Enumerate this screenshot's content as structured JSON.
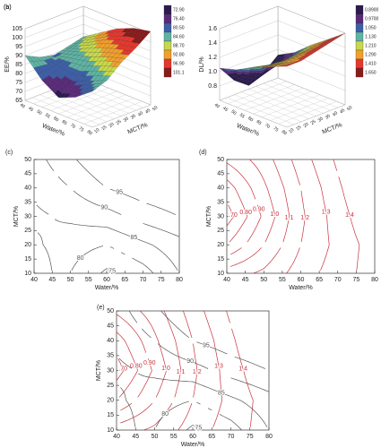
{
  "chart_data": [
    {
      "type": "surface",
      "panel": "(a)",
      "zlabel": "EE/%",
      "xlabel": "Water/%",
      "ylabel": "MCT/%",
      "x": [
        40,
        50,
        60,
        70,
        80
      ],
      "y": [
        10,
        20,
        30,
        40,
        50
      ],
      "z": [
        [
          90,
          80,
          74,
          78,
          85
        ],
        [
          86,
          82,
          80,
          84,
          88
        ],
        [
          84,
          86,
          88,
          92,
          95
        ],
        [
          86,
          90,
          95,
          98,
          100
        ],
        [
          88,
          94,
          100,
          104,
          106
        ]
      ],
      "xlim": [
        40,
        80
      ],
      "ylim": [
        10,
        50
      ],
      "zlim": [
        65,
        105
      ],
      "xticks": [
        40,
        45,
        50,
        55,
        60,
        65,
        70,
        75,
        80
      ],
      "yticks": [
        10,
        15,
        20,
        25,
        30,
        35,
        40,
        45,
        50
      ],
      "zticks": [
        65,
        70,
        75,
        80,
        85,
        90,
        95,
        100,
        105
      ],
      "colorbar": [
        {
          "value": 72.9,
          "label": "72.90"
        },
        {
          "value": 76.4,
          "label": "76.40"
        },
        {
          "value": 80.5,
          "label": "80.50"
        },
        {
          "value": 84.6,
          "label": "84.60"
        },
        {
          "value": 88.7,
          "label": "88.70"
        },
        {
          "value": 92.8,
          "label": "92.80"
        },
        {
          "value": 96.9,
          "label": "96.90"
        },
        101.1
      ],
      "colors": [
        "#2b1b4f",
        "#5a2a7a",
        "#3d5fa8",
        "#5fb3a3",
        "#c7d94a",
        "#f2a02c",
        "#e8372c",
        "#8b1a1a"
      ]
    },
    {
      "type": "surface",
      "panel": "(b)",
      "zlabel": "DL/%",
      "xlabel": "Water/%",
      "ylabel": "MCT/%",
      "x": [
        40,
        50,
        60,
        70,
        80
      ],
      "y": [
        10,
        20,
        30,
        40,
        50
      ],
      "z": [
        [
          1.05,
          1.12,
          1.25,
          1.35,
          1.45
        ],
        [
          0.8,
          1.0,
          1.2,
          1.33,
          1.45
        ],
        [
          0.65,
          0.92,
          1.18,
          1.35,
          1.5
        ],
        [
          0.75,
          0.98,
          1.2,
          1.38,
          1.55
        ],
        [
          0.92,
          1.05,
          1.25,
          1.42,
          1.6
        ]
      ],
      "xlim": [
        40,
        80
      ],
      "ylim": [
        10,
        50
      ],
      "zlim": [
        0.6,
        1.6
      ],
      "xticks": [
        40,
        45,
        50,
        55,
        60,
        65,
        70,
        75,
        80
      ],
      "yticks": [
        10,
        15,
        20,
        25,
        30,
        35,
        40,
        45,
        50
      ],
      "zticks": [
        0.8,
        {
          "value": 1,
          "label": "1.0"
        },
        1.2,
        1.4,
        1.6
      ],
      "colorbar": [
        {
          "value": 0.89,
          "label": "0.8900"
        },
        {
          "value": 0.97,
          "label": "0.9700"
        },
        {
          "value": 1.05,
          "label": "1.050"
        },
        {
          "value": 1.13,
          "label": "1.130"
        },
        {
          "value": 1.21,
          "label": "1.210"
        },
        {
          "value": 1.29,
          "label": "1.290"
        },
        {
          "value": 1.41,
          "label": "1.410"
        },
        {
          "value": 1.65,
          "label": "1.650"
        }
      ],
      "colors": [
        "#2b1b4f",
        "#5a2a7a",
        "#3d5fa8",
        "#5fb3a3",
        "#c7d94a",
        "#f2a02c",
        "#e8372c",
        "#8b1a1a"
      ]
    },
    {
      "type": "contour",
      "panel": "(c)",
      "xlabel": "Water/%",
      "ylabel": "MCT/%",
      "xlim": [
        40,
        80
      ],
      "ylim": [
        10,
        50
      ],
      "xticks": [
        40,
        45,
        50,
        55,
        60,
        65,
        70,
        75,
        80
      ],
      "yticks": [
        10,
        15,
        20,
        25,
        30,
        35,
        40,
        45,
        50
      ],
      "layers": [
        {
          "color": "#555555",
          "x": [
            40,
            50,
            60,
            70,
            80
          ],
          "y": [
            10,
            20,
            30,
            40,
            50
          ],
          "z": [
            [
              90,
              80,
              74,
              78,
              85
            ],
            [
              86,
              82,
              80,
              84,
              88
            ],
            [
              84,
              86,
              88,
              92,
              95
            ],
            [
              86,
              90,
              95,
              98,
              100
            ],
            [
              88,
              94,
              100,
              104,
              106
            ]
          ],
          "levels": [
            75,
            80,
            85,
            90,
            95
          ]
        }
      ]
    },
    {
      "type": "contour",
      "panel": "(d)",
      "xlabel": "Water/%",
      "ylabel": "MCT/%",
      "xlim": [
        40,
        80
      ],
      "ylim": [
        10,
        50
      ],
      "xticks": [
        40,
        45,
        50,
        55,
        60,
        65,
        70,
        75,
        80
      ],
      "yticks": [
        10,
        15,
        20,
        25,
        30,
        35,
        40,
        45,
        50
      ],
      "layers": [
        {
          "color": "#c8323c",
          "x": [
            40,
            50,
            60,
            70,
            80
          ],
          "y": [
            10,
            20,
            30,
            40,
            50
          ],
          "z": [
            [
              1.05,
              1.12,
              1.25,
              1.35,
              1.45
            ],
            [
              0.8,
              1.0,
              1.2,
              1.33,
              1.45
            ],
            [
              0.65,
              0.92,
              1.18,
              1.35,
              1.5
            ],
            [
              0.75,
              0.98,
              1.2,
              1.38,
              1.55
            ],
            [
              0.92,
              1.05,
              1.25,
              1.42,
              1.6
            ]
          ],
          "levels": [
            {
              "value": 0.7,
              "label": ".70"
            },
            {
              "value": 0.8,
              "label": "0.80"
            },
            {
              "value": 0.9,
              "label": "0.90"
            },
            {
              "value": 1,
              "label": "1.0"
            },
            1.1,
            1.2,
            1.3,
            1.4
          ]
        }
      ]
    },
    {
      "type": "contour",
      "panel": "(e)",
      "xlabel": "Water/%",
      "ylabel": "MCT/%",
      "xlim": [
        40,
        80
      ],
      "ylim": [
        10,
        50
      ],
      "xticks": [
        40,
        45,
        50,
        55,
        60,
        65,
        70,
        75,
        80
      ],
      "yticks": [
        10,
        15,
        20,
        25,
        30,
        35,
        40,
        45,
        50
      ],
      "layers": [
        {
          "color": "#c8323c",
          "x": [
            40,
            50,
            60,
            70,
            80
          ],
          "y": [
            10,
            20,
            30,
            40,
            50
          ],
          "z": [
            [
              1.05,
              1.12,
              1.25,
              1.35,
              1.45
            ],
            [
              0.8,
              1.0,
              1.2,
              1.33,
              1.45
            ],
            [
              0.65,
              0.92,
              1.18,
              1.35,
              1.5
            ],
            [
              0.75,
              0.98,
              1.2,
              1.38,
              1.55
            ],
            [
              0.92,
              1.05,
              1.25,
              1.42,
              1.6
            ]
          ],
          "levels": [
            {
              "value": 0.7,
              "label": ".70"
            },
            {
              "value": 0.8,
              "label": "0.80"
            },
            {
              "value": 0.9,
              "label": "0.90"
            },
            {
              "value": 1,
              "label": "1.0"
            },
            1.1,
            1.2,
            1.3,
            1.4
          ]
        },
        {
          "color": "#555555",
          "x": [
            40,
            50,
            60,
            70,
            80
          ],
          "y": [
            10,
            20,
            30,
            40,
            50
          ],
          "z": [
            [
              90,
              80,
              74,
              78,
              85
            ],
            [
              86,
              82,
              80,
              84,
              88
            ],
            [
              84,
              86,
              88,
              92,
              95
            ],
            [
              86,
              90,
              95,
              98,
              100
            ],
            [
              88,
              94,
              100,
              104,
              106
            ]
          ],
          "levels": [
            75,
            80,
            85,
            90,
            95
          ]
        }
      ]
    }
  ]
}
